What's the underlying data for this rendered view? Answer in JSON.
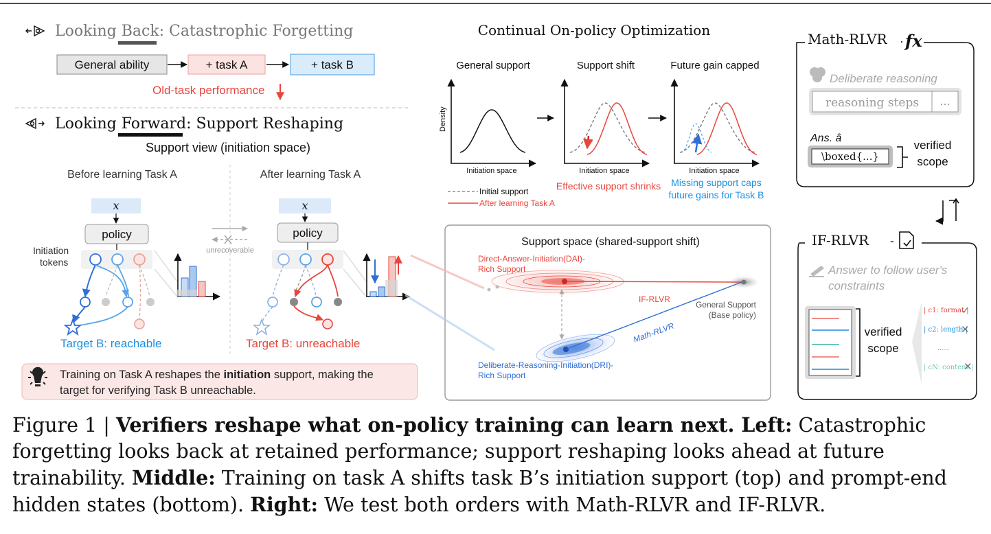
{
  "left": {
    "back_title_prefix": "Looking ",
    "back_title_under": "Back",
    "back_title_rest": ": Catastrophic Forgetting",
    "general_ability": "General ability",
    "task_a": "+ task A",
    "task_b": "+ task B",
    "old_task_perf": "Old-task performance",
    "forward_title_prefix": "Looking ",
    "forward_title_under": "Forward",
    "forward_title_rest": ": Support Reshaping",
    "support_view": "Support view (initiation space)",
    "before_label": "Before learning Task A",
    "after_label": "After learning Task A",
    "x_symbol": "x",
    "policy": "policy",
    "initiation_tokens_1": "Initiation",
    "initiation_tokens_2": "tokens",
    "unrecoverable": "unrecoverable",
    "target_reachable": "Target B: reachable",
    "target_unreachable": "Target B: unreachable",
    "tip_1_a": "Training on Task A reshapes the ",
    "tip_1_b": "initiation",
    "tip_1_c": " support, making the",
    "tip_2": "target for verifying Task B unreachable."
  },
  "middle": {
    "title": "Continual On-policy Optimization",
    "panel1_title": "General support",
    "panel2_title": "Support shift",
    "panel3_title": "Future gain capped",
    "ylabel": "Density",
    "xlabel": "Initiation space",
    "legend_initial": "Initial support",
    "legend_after": "After learning Task A",
    "shrinks": "Effective support shrinks",
    "missing_1": "Missing support caps",
    "missing_2": "future gains for Task B",
    "space_title": "Support space (shared-support shift)",
    "dai_1": "Direct-Answer-Initiation(DAI)-",
    "dai_2": "Rich Support",
    "dri_1": "Deliberate-Reasoning-Initiation(DRI)-",
    "dri_2": "Rich Support",
    "if_rlvr": "IF-RLVR",
    "math_rlvr": "Math-RLVR",
    "general_support": "General Support",
    "base_policy": "(Base policy)"
  },
  "right": {
    "math_title": "Math-RLVR",
    "fx": "fx",
    "deliberate": "Deliberate reasoning",
    "reasoning_steps": "reasoning  steps",
    "ellipsis": "...",
    "ans": "Ans. â",
    "boxed": "\\boxed{...}",
    "verified": "verified",
    "scope": "scope",
    "if_title": "IF-RLVR",
    "answer_1": "Answer to follow user's",
    "answer_2": "constraints",
    "c1": "| c1: format |",
    "c2": "| c2: length |",
    "dots": "......",
    "cn": "| cN: content |"
  },
  "caption": {
    "p1": "Figure 1 | ",
    "b1": "Verifiers reshape what on-policy training can learn next. Left:",
    "p2": " Catastrophic forgetting looks back at retained performance; support reshaping looks ahead at future trainability. ",
    "b2": "Middle:",
    "p3": " Training on task A shifts task B’s initiation support (top) and prompt-end hidden states (bottom). ",
    "b3": "Right:",
    "p4": " We test both orders with Math-RLVR and IF-RLVR."
  },
  "chart_data": [
    {
      "type": "line",
      "title": "General support",
      "xlabel": "Initiation space",
      "ylabel": "Density",
      "series": []
    },
    {
      "type": "line",
      "title": "Support shift",
      "xlabel": "Initiation space",
      "series": [
        {
          "name": "Initial support",
          "values": []
        },
        {
          "name": "After learning Task A",
          "values": []
        }
      ]
    },
    {
      "type": "line",
      "title": "Future gain capped",
      "xlabel": "Initiation space",
      "series": [
        {
          "name": "Initial support",
          "values": []
        },
        {
          "name": "After learning Task A",
          "values": []
        }
      ]
    }
  ],
  "colors": {
    "red": "#e8453c",
    "blue": "#2f6fd6",
    "lightblue": "#5aa3e8",
    "gray": "#888888",
    "teal": "#6cc7bb"
  }
}
